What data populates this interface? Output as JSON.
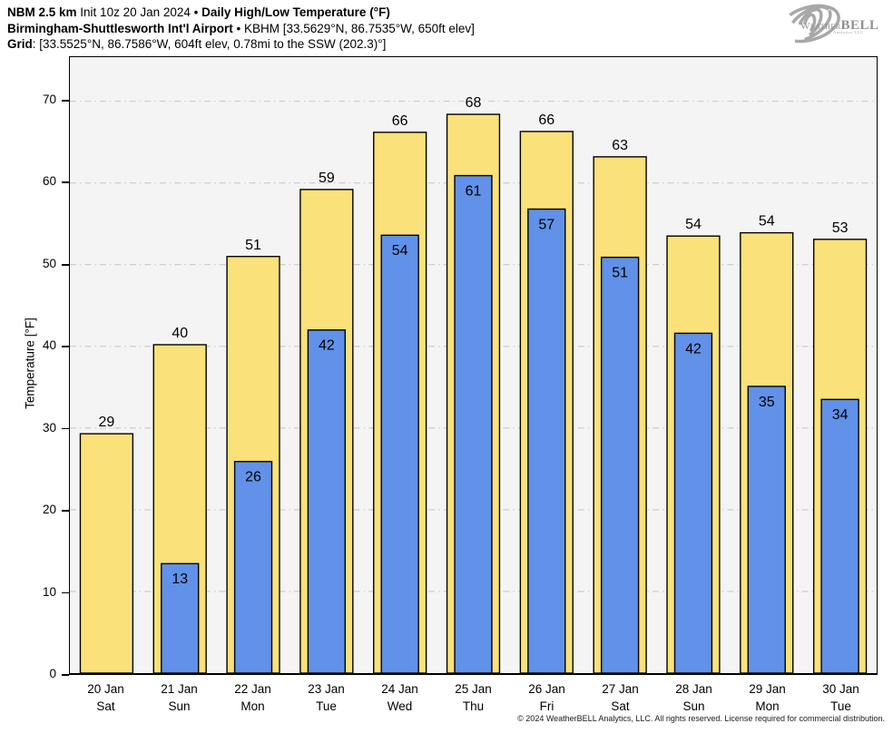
{
  "header": {
    "line1": {
      "model": "NBM 2.5 km",
      "init": "Init 10z 20 Jan 2024",
      "sep": "•",
      "title": "Daily High/Low Temperature (°F)"
    },
    "line2": {
      "station": "Birmingham-Shuttlesworth Int'l Airport",
      "sep": "•",
      "station_info": "KBHM [33.5629°N, 86.7535°W, 650ft elev]"
    },
    "line3": {
      "label": "Grid",
      "info": ": [33.5525°N, 86.7586°W, 604ft elev, 0.78mi to the SSW (202.3)°]"
    }
  },
  "logo": {
    "brand_weather": "Weather",
    "brand_bell": "BELL",
    "sub": "Analytics LLC"
  },
  "footer": {
    "copyright": "© 2024 WeatherBELL Analytics, LLC. All rights reserved. License required for commercial distribution."
  },
  "chart_data": {
    "type": "bar",
    "title": "Daily High/Low Temperature (°F)",
    "xlabel": "",
    "ylabel": "Temperature [°F]",
    "ylim": [
      0,
      75.4
    ],
    "yticks": [
      0,
      10,
      20,
      30,
      40,
      50,
      60,
      70
    ],
    "grid": "horizontal dash-dot gridlines at 10–70",
    "legend": "none (high = yellow wide bars, low = blue narrow bars, labels on bars)",
    "categories": [
      {
        "date": "20 Jan",
        "day": "Sat"
      },
      {
        "date": "21 Jan",
        "day": "Sun"
      },
      {
        "date": "22 Jan",
        "day": "Mon"
      },
      {
        "date": "23 Jan",
        "day": "Tue"
      },
      {
        "date": "24 Jan",
        "day": "Wed"
      },
      {
        "date": "25 Jan",
        "day": "Thu"
      },
      {
        "date": "26 Jan",
        "day": "Fri"
      },
      {
        "date": "27 Jan",
        "day": "Sat"
      },
      {
        "date": "28 Jan",
        "day": "Sun"
      },
      {
        "date": "29 Jan",
        "day": "Mon"
      },
      {
        "date": "30 Jan",
        "day": "Tue"
      }
    ],
    "series": [
      {
        "name": "High",
        "color": "#FBE179",
        "values": [
          29,
          40,
          51,
          59,
          66,
          68,
          66,
          63,
          54,
          54,
          53
        ],
        "values_precise": [
          29.3,
          40.2,
          51.0,
          59.2,
          66.2,
          68.4,
          66.3,
          63.2,
          53.5,
          53.9,
          53.1
        ]
      },
      {
        "name": "Low",
        "color": "#6191E8",
        "values": [
          null,
          13,
          26,
          42,
          54,
          61,
          57,
          51,
          42,
          35,
          34
        ],
        "values_precise": [
          null,
          13.4,
          25.9,
          42.0,
          53.6,
          60.9,
          56.8,
          50.9,
          41.6,
          35.1,
          33.5
        ]
      }
    ],
    "colors": {
      "plot_bg": "#f4f4f4",
      "grid": "#c9c9c9",
      "bar_border": "#000000"
    }
  }
}
